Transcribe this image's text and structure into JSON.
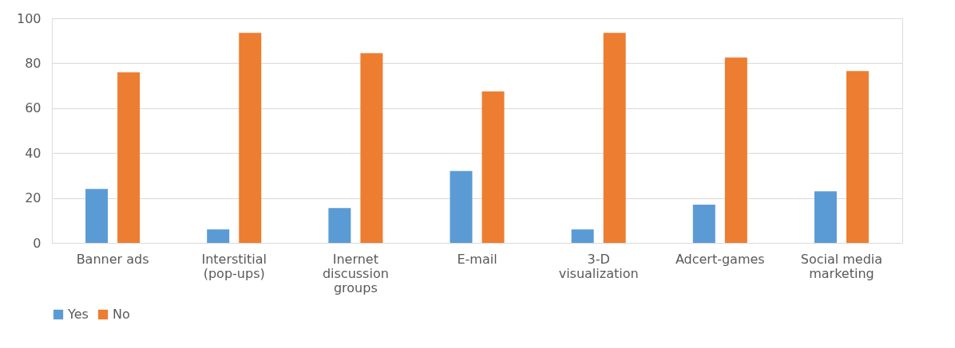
{
  "chart_data": {
    "type": "bar",
    "categories": [
      "Banner ads",
      "Interstitial (pop-ups)",
      "Inernet discussion groups",
      "E-mail",
      "3-D visualization",
      "Adcert-games",
      "Social media marketing"
    ],
    "series": [
      {
        "name": "Yes",
        "color": "#5b9bd5",
        "values": [
          24,
          6,
          15.5,
          32,
          6,
          17,
          23
        ]
      },
      {
        "name": "No",
        "color": "#ed7d31",
        "values": [
          76,
          93.5,
          84.5,
          67.5,
          93.5,
          82.5,
          76.5
        ]
      }
    ],
    "ylim": [
      0,
      100
    ],
    "yticks": [
      0,
      20,
      40,
      60,
      80,
      100
    ],
    "grid": "y",
    "legend": "bottom"
  }
}
